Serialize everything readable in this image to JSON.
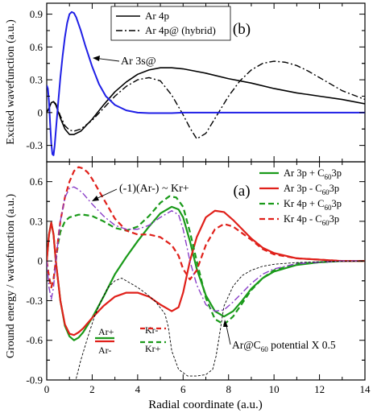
{
  "chart_data": [
    {
      "type": "line",
      "panel_label": "(b)",
      "ylabel": "Excited wavefunction (a.u.)",
      "xlim": [
        0,
        14
      ],
      "ylim": [
        -0.45,
        1.0
      ],
      "yticks": [
        -0.3,
        0,
        0.3,
        0.6,
        0.9
      ],
      "ytick_labels": [
        "-0.3",
        "0",
        "0.3",
        "0.6",
        "0.9"
      ],
      "grid": false,
      "legend_position": "top-center",
      "series": [
        {
          "name": "Ar 4p",
          "color": "#000000",
          "style": "solid",
          "width": 1.6,
          "x": [
            0,
            0.1,
            0.2,
            0.3,
            0.4,
            0.6,
            0.8,
            1.0,
            1.2,
            1.5,
            2.0,
            2.5,
            3.0,
            3.5,
            4.0,
            4.5,
            5.0,
            5.5,
            6.0,
            7.0,
            8.0,
            9.0,
            10.0,
            11.0,
            12.0,
            13.0,
            14.0
          ],
          "y": [
            0,
            0.04,
            0.09,
            0.1,
            0.07,
            -0.05,
            -0.15,
            -0.2,
            -0.2,
            -0.17,
            -0.06,
            0.07,
            0.19,
            0.28,
            0.35,
            0.39,
            0.41,
            0.41,
            0.4,
            0.36,
            0.31,
            0.27,
            0.22,
            0.18,
            0.15,
            0.12,
            0.08
          ]
        },
        {
          "name": "Ar 4p@ (hybrid)",
          "color": "#000000",
          "style": "dashdot",
          "width": 1.4,
          "x": [
            0,
            0.1,
            0.2,
            0.3,
            0.4,
            0.6,
            0.8,
            1.0,
            1.2,
            1.5,
            2.0,
            2.5,
            3.0,
            3.5,
            4.0,
            4.5,
            5.0,
            5.5,
            6.0,
            6.3,
            6.6,
            7.0,
            7.5,
            8.0,
            8.5,
            9.0,
            9.5,
            10.0,
            10.5,
            11.0,
            11.5,
            12.0,
            13.0,
            14.0
          ],
          "y": [
            0,
            0.04,
            0.09,
            0.1,
            0.08,
            -0.03,
            -0.12,
            -0.16,
            -0.17,
            -0.15,
            -0.07,
            0.04,
            0.15,
            0.24,
            0.3,
            0.32,
            0.29,
            0.16,
            -0.02,
            -0.14,
            -0.24,
            -0.19,
            -0.02,
            0.15,
            0.29,
            0.39,
            0.45,
            0.47,
            0.46,
            0.43,
            0.38,
            0.32,
            0.2,
            0.12
          ]
        },
        {
          "name": "Ar 3s@",
          "color": "#1f1fe6",
          "style": "solid",
          "width": 2.0,
          "x": [
            0,
            0.05,
            0.1,
            0.15,
            0.2,
            0.25,
            0.3,
            0.35,
            0.4,
            0.5,
            0.6,
            0.7,
            0.8,
            0.9,
            1.0,
            1.1,
            1.2,
            1.3,
            1.5,
            1.7,
            2.0,
            2.3,
            2.6,
            3.0,
            3.5,
            4.0,
            4.5,
            5.0,
            5.5,
            6.0,
            6.5,
            7.0,
            8.0,
            9.0,
            10.0,
            11.0,
            12.0,
            13.0,
            14.0
          ],
          "y": [
            0.25,
            0.22,
            0.1,
            -0.1,
            -0.28,
            -0.38,
            -0.39,
            -0.3,
            -0.17,
            0.08,
            0.32,
            0.52,
            0.69,
            0.82,
            0.9,
            0.92,
            0.91,
            0.87,
            0.75,
            0.61,
            0.42,
            0.26,
            0.15,
            0.07,
            0.02,
            0.0,
            -0.005,
            -0.005,
            -0.005,
            0.0,
            0.0,
            0.0,
            0.0,
            0.0,
            0.0,
            0.0,
            0.0,
            0.0,
            0.0
          ]
        }
      ],
      "annotations": [
        {
          "text": "Ar 3s@",
          "arrow_to_x": 1.25,
          "arrow_to_y": 0.83
        }
      ]
    },
    {
      "type": "line",
      "panel_label": "(a)",
      "xlabel": "Radial coordinate (a.u.)",
      "ylabel": "Ground energy / wavefunction (a.u.)",
      "xlim": [
        0,
        14
      ],
      "ylim": [
        -0.9,
        0.75
      ],
      "xticks": [
        0,
        2,
        4,
        6,
        8,
        10,
        12,
        14
      ],
      "xtick_labels": [
        "0",
        "2",
        "4",
        "6",
        "8",
        "10",
        "12",
        "14"
      ],
      "yticks": [
        -0.9,
        -0.6,
        -0.3,
        0,
        0.3,
        0.6
      ],
      "ytick_labels": [
        "-0.9",
        "-0.6",
        "-0.3",
        "0",
        "0.3",
        "0.6"
      ],
      "grid": false,
      "legend_position": "top-right",
      "legend_labels": [
        {
          "parts": [
            "Ar 3p + C",
            "60",
            "3p"
          ]
        },
        {
          "parts": [
            "Ar 3p - C",
            "60",
            "3p"
          ]
        },
        {
          "parts": [
            "Kr 4p + C",
            "60",
            "3p"
          ]
        },
        {
          "parts": [
            "Kr 4p - C",
            "60",
            "3p"
          ]
        }
      ],
      "series": [
        {
          "name": "Ar 3p + C60 3p",
          "color": "#1a9a1a",
          "style": "solid",
          "width": 2.2,
          "x": [
            0,
            0.1,
            0.2,
            0.3,
            0.4,
            0.5,
            0.6,
            0.8,
            1.0,
            1.2,
            1.4,
            1.6,
            2.0,
            2.5,
            3.0,
            3.5,
            4.0,
            4.5,
            5.0,
            5.5,
            5.8,
            6.0,
            6.3,
            6.6,
            7.0,
            7.4,
            7.8,
            8.2,
            8.6,
            9.0,
            9.5,
            10.0,
            11.0,
            12.0,
            13.0,
            14.0
          ],
          "y": [
            0,
            0.2,
            0.29,
            0.2,
            0.0,
            -0.15,
            -0.3,
            -0.49,
            -0.57,
            -0.6,
            -0.58,
            -0.54,
            -0.43,
            -0.27,
            -0.1,
            0.03,
            0.15,
            0.26,
            0.36,
            0.41,
            0.39,
            0.33,
            0.15,
            -0.06,
            -0.26,
            -0.38,
            -0.42,
            -0.38,
            -0.3,
            -0.21,
            -0.13,
            -0.08,
            -0.03,
            -0.01,
            0.0,
            0.0
          ]
        },
        {
          "name": "Ar 3p - C60 3p",
          "color": "#e0201a",
          "style": "solid",
          "width": 2.2,
          "x": [
            0,
            0.1,
            0.2,
            0.3,
            0.4,
            0.5,
            0.6,
            0.8,
            1.0,
            1.2,
            1.4,
            1.6,
            2.0,
            2.5,
            3.0,
            3.5,
            4.0,
            4.5,
            5.0,
            5.5,
            5.8,
            6.0,
            6.3,
            6.6,
            7.0,
            7.4,
            7.8,
            8.2,
            8.6,
            9.0,
            9.5,
            10.0,
            11.0,
            12.0,
            13.0,
            14.0
          ],
          "y": [
            0,
            0.2,
            0.29,
            0.2,
            0.0,
            -0.15,
            -0.3,
            -0.48,
            -0.55,
            -0.56,
            -0.54,
            -0.51,
            -0.43,
            -0.34,
            -0.27,
            -0.24,
            -0.24,
            -0.27,
            -0.33,
            -0.38,
            -0.35,
            -0.24,
            0.0,
            0.18,
            0.33,
            0.38,
            0.37,
            0.31,
            0.24,
            0.17,
            0.1,
            0.06,
            0.02,
            0.01,
            0.0,
            0.0
          ]
        },
        {
          "name": "Kr 4p + C60 3p",
          "color": "#1a9a1a",
          "style": "dashed",
          "width": 2.2,
          "x": [
            0,
            0.1,
            0.2,
            0.3,
            0.4,
            0.5,
            0.6,
            0.8,
            1.0,
            1.2,
            1.4,
            1.6,
            2.0,
            2.5,
            3.0,
            3.5,
            4.0,
            4.5,
            5.0,
            5.4,
            5.7,
            6.0,
            6.3,
            6.6,
            7.0,
            7.4,
            7.8,
            8.2,
            8.6,
            9.0,
            9.5,
            10.0,
            11.0,
            12.0,
            13.0,
            14.0
          ],
          "y": [
            0,
            -0.12,
            -0.2,
            -0.14,
            0.0,
            0.13,
            0.22,
            0.3,
            0.33,
            0.34,
            0.35,
            0.35,
            0.34,
            0.3,
            0.25,
            0.23,
            0.26,
            0.34,
            0.44,
            0.49,
            0.48,
            0.41,
            0.22,
            0.0,
            -0.28,
            -0.44,
            -0.48,
            -0.42,
            -0.32,
            -0.22,
            -0.13,
            -0.07,
            -0.02,
            -0.01,
            0.0,
            0.0
          ]
        },
        {
          "name": "Kr 4p - C60 3p",
          "color": "#e0201a",
          "style": "dashed",
          "width": 2.2,
          "x": [
            0,
            0.1,
            0.2,
            0.3,
            0.4,
            0.5,
            0.6,
            0.8,
            1.0,
            1.2,
            1.4,
            1.6,
            1.8,
            2.0,
            2.5,
            3.0,
            3.5,
            4.0,
            4.5,
            5.0,
            5.5,
            5.8,
            6.0,
            6.3,
            6.6,
            7.0,
            7.4,
            7.8,
            8.2,
            8.6,
            9.0,
            9.5,
            10.0,
            11.0,
            12.0,
            13.0,
            14.0
          ],
          "y": [
            0,
            -0.12,
            -0.2,
            -0.14,
            0.0,
            0.16,
            0.3,
            0.48,
            0.6,
            0.68,
            0.71,
            0.7,
            0.67,
            0.62,
            0.47,
            0.32,
            0.23,
            0.2,
            0.2,
            0.18,
            0.12,
            0.04,
            -0.06,
            -0.14,
            -0.07,
            0.12,
            0.24,
            0.28,
            0.26,
            0.21,
            0.16,
            0.09,
            0.05,
            0.02,
            0.01,
            0.0,
            0.0
          ]
        },
        {
          "name": "(-1)(Ar-)",
          "color": "#8a3fc8",
          "style": "dashdot",
          "width": 1.4,
          "x": [
            0,
            0.1,
            0.2,
            0.3,
            0.4,
            0.5,
            0.6,
            0.8,
            1.0,
            1.2,
            1.4,
            1.6,
            2.0,
            2.5,
            3.0,
            3.5,
            4.0,
            4.5,
            5.0,
            5.5,
            5.8,
            6.0,
            6.3,
            6.6,
            7.0,
            7.4,
            7.8,
            8.2,
            8.6,
            9.0,
            9.5,
            10.0,
            11.0,
            12.0,
            13.0,
            14.0
          ],
          "y": [
            0,
            -0.2,
            -0.29,
            -0.2,
            0.0,
            0.15,
            0.3,
            0.48,
            0.55,
            0.56,
            0.54,
            0.51,
            0.43,
            0.34,
            0.27,
            0.24,
            0.24,
            0.27,
            0.33,
            0.38,
            0.35,
            0.24,
            0.0,
            -0.18,
            -0.33,
            -0.38,
            -0.37,
            -0.31,
            -0.24,
            -0.17,
            -0.1,
            -0.06,
            -0.02,
            -0.01,
            0.0,
            0.0
          ]
        },
        {
          "name": "Ar@C60 potential X 0.5",
          "color": "#000000",
          "style": "finedash",
          "width": 0.9,
          "x": [
            1.25,
            1.5,
            1.8,
            2.1,
            2.4,
            2.7,
            3.0,
            3.3,
            3.6,
            4.0,
            4.4,
            4.8,
            5.2,
            5.35,
            5.5,
            5.8,
            6.2,
            6.6,
            7.0,
            7.3,
            7.45,
            7.6,
            7.8,
            8.2,
            8.6,
            9.0,
            9.5,
            10.0,
            11.0,
            12.0,
            13.0,
            14.0
          ],
          "y": [
            -0.92,
            -0.75,
            -0.58,
            -0.42,
            -0.3,
            -0.2,
            -0.15,
            -0.13,
            -0.16,
            -0.2,
            -0.25,
            -0.31,
            -0.4,
            -0.5,
            -0.68,
            -0.82,
            -0.87,
            -0.87,
            -0.86,
            -0.82,
            -0.72,
            -0.56,
            -0.34,
            -0.19,
            -0.11,
            -0.07,
            -0.04,
            -0.025,
            -0.012,
            -0.006,
            -0.003,
            -0.002
          ]
        }
      ],
      "annotations": [
        {
          "text": "(-1)(Ar-) ~ Kr+",
          "arrow_to_x": 1.7,
          "arrow_to_y": 0.52
        },
        {
          "text": "Ar@C60 potential X 0.5",
          "parts": [
            "Ar@C",
            "60",
            " potential X 0.5"
          ],
          "arrow_to_x": 7.8,
          "arrow_to_y": -0.49
        }
      ],
      "inset_key": [
        {
          "text": "Ar+",
          "color": "#1a9a1a",
          "style": "solid"
        },
        {
          "text": "Ar-",
          "color": "#e0201a",
          "style": "solid"
        },
        {
          "text": "Kr-",
          "color": "#e0201a",
          "style": "dashed"
        },
        {
          "text": "Kr+",
          "color": "#1a9a1a",
          "style": "dashed"
        }
      ]
    }
  ]
}
